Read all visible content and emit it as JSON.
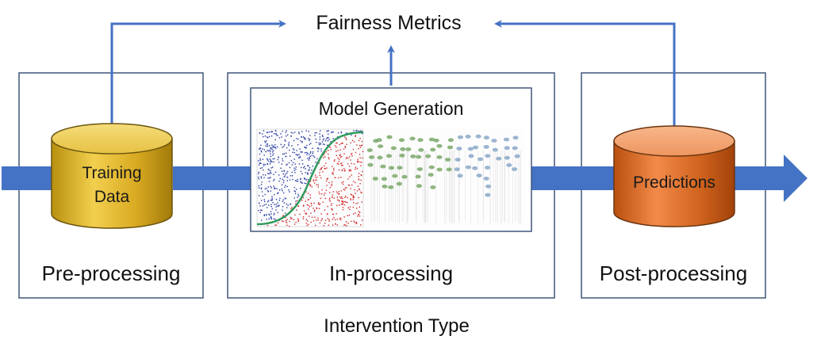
{
  "title": "Fairness Metrics",
  "model_label": "Model Generation",
  "footer": "Intervention Type",
  "stages": [
    {
      "label": "Pre-processing"
    },
    {
      "label": "In-processing"
    },
    {
      "label": "Post-processing"
    }
  ],
  "training_data": {
    "line1": "Training",
    "line2": "Data"
  },
  "predictions": {
    "label": "Predictions"
  },
  "colors": {
    "arrow": "#4472c4",
    "box_border": "#41577a",
    "training_cylinder": "#d9aa22",
    "predictions_cylinder": "#d2651f",
    "scatter_class_a": "#2b3ea3",
    "scatter_class_b": "#d22a2a",
    "decision_curve": "#2f9a5c",
    "tree_node_a": "#7aa86a",
    "tree_node_b": "#8aa8c8"
  },
  "icons": [
    "scatter-plot-thumbnail",
    "decision-tree-thumbnail"
  ]
}
